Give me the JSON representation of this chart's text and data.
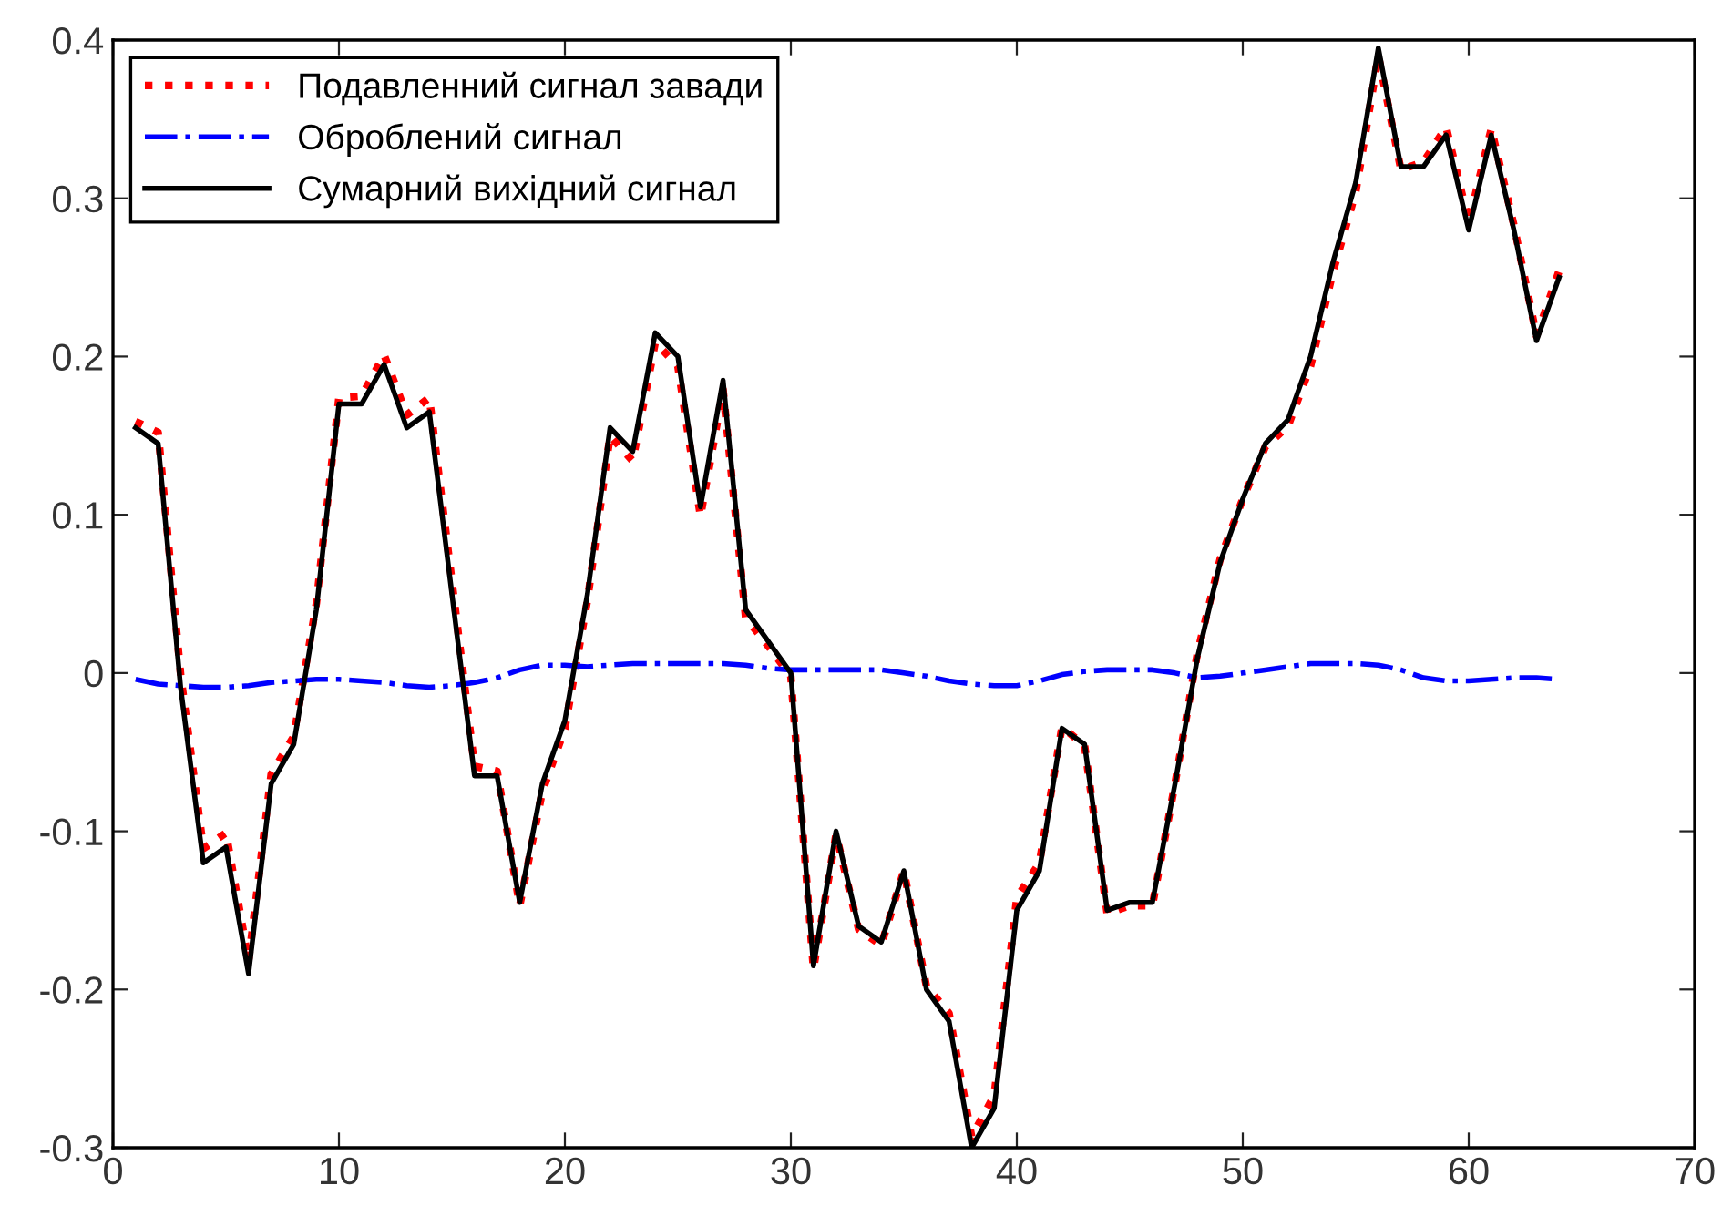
{
  "chart_data": {
    "type": "line",
    "x": [
      1,
      2,
      3,
      4,
      5,
      6,
      7,
      8,
      9,
      10,
      11,
      12,
      13,
      14,
      15,
      16,
      17,
      18,
      19,
      20,
      21,
      22,
      23,
      24,
      25,
      26,
      27,
      28,
      29,
      30,
      31,
      32,
      33,
      34,
      35,
      36,
      37,
      38,
      39,
      40,
      41,
      42,
      43,
      44,
      45,
      46,
      47,
      48,
      49,
      50,
      51,
      52,
      53,
      54,
      55,
      56,
      57,
      58,
      59,
      60,
      61,
      62,
      63,
      64
    ],
    "series": [
      {
        "name": "Подавленний сигнал завади",
        "color": "#ff0000",
        "line_style": "dotted",
        "values": [
          0.159,
          0.152,
          -0.002,
          -0.111,
          -0.101,
          -0.182,
          -0.064,
          -0.04,
          0.044,
          0.174,
          0.175,
          0.201,
          0.163,
          0.174,
          0.058,
          -0.059,
          -0.062,
          -0.147,
          -0.075,
          -0.035,
          0.046,
          0.15,
          0.134,
          0.209,
          0.194,
          0.099,
          0.179,
          0.035,
          0.017,
          -0.002,
          -0.187,
          -0.102,
          -0.162,
          -0.172,
          -0.125,
          -0.198,
          -0.215,
          -0.293,
          -0.267,
          -0.142,
          -0.12,
          -0.034,
          -0.046,
          -0.152,
          -0.147,
          -0.147,
          -0.07,
          0.013,
          0.072,
          0.11,
          0.143,
          0.156,
          0.194,
          0.254,
          0.304,
          0.39,
          0.318,
          0.323,
          0.345,
          0.285,
          0.344,
          0.283,
          0.213,
          0.254
        ]
      },
      {
        "name": "Оброблений сигнал",
        "color": "#0000ff",
        "line_style": "dashdot",
        "values": [
          -0.004,
          -0.007,
          -0.008,
          -0.009,
          -0.009,
          -0.008,
          -0.006,
          -0.005,
          -0.004,
          -0.004,
          -0.005,
          -0.006,
          -0.008,
          -0.009,
          -0.008,
          -0.006,
          -0.003,
          0.002,
          0.005,
          0.005,
          0.004,
          0.005,
          0.006,
          0.006,
          0.006,
          0.006,
          0.006,
          0.005,
          0.003,
          0.002,
          0.002,
          0.002,
          0.002,
          0.002,
          0.0,
          -0.002,
          -0.005,
          -0.007,
          -0.008,
          -0.008,
          -0.005,
          -0.001,
          0.001,
          0.002,
          0.002,
          0.002,
          0.0,
          -0.003,
          -0.002,
          0.0,
          0.002,
          0.004,
          0.006,
          0.006,
          0.006,
          0.005,
          0.002,
          -0.003,
          -0.005,
          -0.005,
          -0.004,
          -0.003,
          -0.003,
          -0.004
        ]
      },
      {
        "name": "Сумарний вихідний сигнал",
        "color": "#000000",
        "line_style": "solid",
        "values": [
          0.155,
          0.145,
          -0.01,
          -0.12,
          -0.11,
          -0.19,
          -0.07,
          -0.045,
          0.04,
          0.17,
          0.17,
          0.195,
          0.155,
          0.165,
          0.05,
          -0.065,
          -0.065,
          -0.145,
          -0.07,
          -0.03,
          0.05,
          0.155,
          0.14,
          0.215,
          0.2,
          0.105,
          0.185,
          0.04,
          0.02,
          0.0,
          -0.185,
          -0.1,
          -0.16,
          -0.17,
          -0.125,
          -0.2,
          -0.22,
          -0.3,
          -0.275,
          -0.15,
          -0.125,
          -0.035,
          -0.045,
          -0.15,
          -0.145,
          -0.145,
          -0.07,
          0.01,
          0.07,
          0.11,
          0.145,
          0.16,
          0.2,
          0.26,
          0.31,
          0.395,
          0.32,
          0.32,
          0.34,
          0.28,
          0.34,
          0.28,
          0.21,
          0.25
        ]
      }
    ],
    "xlim": [
      0,
      70
    ],
    "xticks": [
      0,
      10,
      20,
      30,
      40,
      50,
      60,
      70
    ],
    "ylim": [
      -0.3,
      0.4
    ],
    "yticks": [
      -0.3,
      -0.2,
      -0.1,
      0,
      0.1,
      0.2,
      0.3,
      0.4
    ],
    "legend": "top left",
    "grid": false,
    "marker": "none"
  }
}
